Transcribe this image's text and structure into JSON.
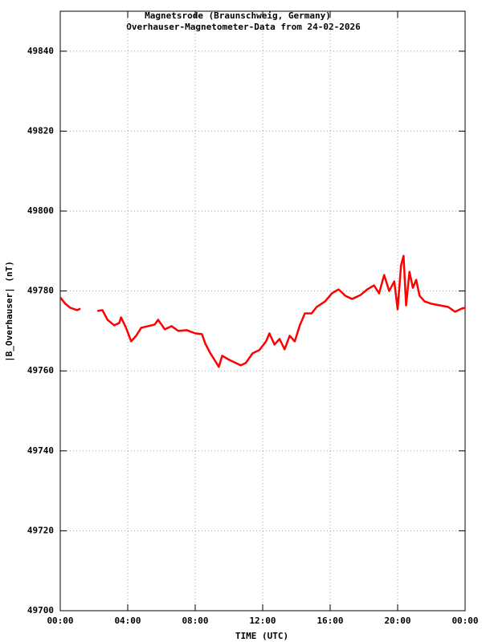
{
  "chart_data": {
    "type": "line",
    "title": "Magnetsrode (Braunschweig, Germany)",
    "subtitle": "Overhauser-Magnetometer-Data from 24-02-2026",
    "x_label": "TIME (UTC)",
    "y_label": "|B_Overhauser| (nT)",
    "xlim": [
      0,
      24
    ],
    "ylim": [
      49700,
      49850
    ],
    "xticks": [
      {
        "value": 0,
        "label": "00:00"
      },
      {
        "value": 4,
        "label": "04:00"
      },
      {
        "value": 8,
        "label": "08:00"
      },
      {
        "value": 12,
        "label": "12:00"
      },
      {
        "value": 16,
        "label": "16:00"
      },
      {
        "value": 20,
        "label": "20:00"
      },
      {
        "value": 24,
        "label": "00:00"
      }
    ],
    "yticks": [
      49700,
      49720,
      49740,
      49760,
      49780,
      49800,
      49820,
      49840
    ],
    "grid": true,
    "x": [
      0,
      0.3,
      0.6,
      1.0,
      1.2,
      1.7,
      2.2,
      2.5,
      2.8,
      3.2,
      3.5,
      3.6,
      3.9,
      4.2,
      4.5,
      4.8,
      5.2,
      5.6,
      5.8,
      6.2,
      6.6,
      7.0,
      7.5,
      8.0,
      8.4,
      8.6,
      8.9,
      9.2,
      9.4,
      9.6,
      10.0,
      10.4,
      10.7,
      11.0,
      11.4,
      11.8,
      12.2,
      12.4,
      12.7,
      13.0,
      13.3,
      13.6,
      13.9,
      14.2,
      14.5,
      14.9,
      15.2,
      15.7,
      16.1,
      16.5,
      16.9,
      17.3,
      17.8,
      18.2,
      18.6,
      18.9,
      19.2,
      19.5,
      19.8,
      20.0,
      20.2,
      20.35,
      20.5,
      20.7,
      20.9,
      21.1,
      21.3,
      21.6,
      22.0,
      22.5,
      23.0,
      23.4,
      23.8,
      24.0
    ],
    "series": [
      {
        "name": "B_Overhauser",
        "color": "#ff0000",
        "values": [
          49778.4,
          49776.8,
          49775.8,
          49775.2,
          49775.6,
          null,
          49775,
          49775.2,
          49772.8,
          49771.4,
          49772,
          49773.4,
          49770.8,
          49767.4,
          49768.8,
          49770.8,
          49771.2,
          49771.6,
          49772.8,
          49770.4,
          49771.2,
          49770,
          49770.2,
          49769.4,
          49769.2,
          49766.8,
          49764.4,
          49762.4,
          49761,
          49763.8,
          49762.8,
          49762,
          49761.4,
          49762,
          49764.4,
          49765.2,
          49767.4,
          49769.4,
          49766.6,
          49768,
          49765.4,
          49768.8,
          49767.4,
          49771.4,
          49774.4,
          49774.4,
          49776,
          49777.4,
          49779.4,
          49780.4,
          49778.8,
          49778,
          49779,
          49780.4,
          49781.4,
          49779.4,
          49784,
          49780,
          49782.4,
          49775.4,
          49786.4,
          49788.8,
          49776.4,
          49784.8,
          49780.8,
          49782.8,
          49778.8,
          49777.4,
          49776.8,
          49776.4,
          49776,
          49774.8,
          49775.6,
          49775.8
        ]
      }
    ]
  }
}
